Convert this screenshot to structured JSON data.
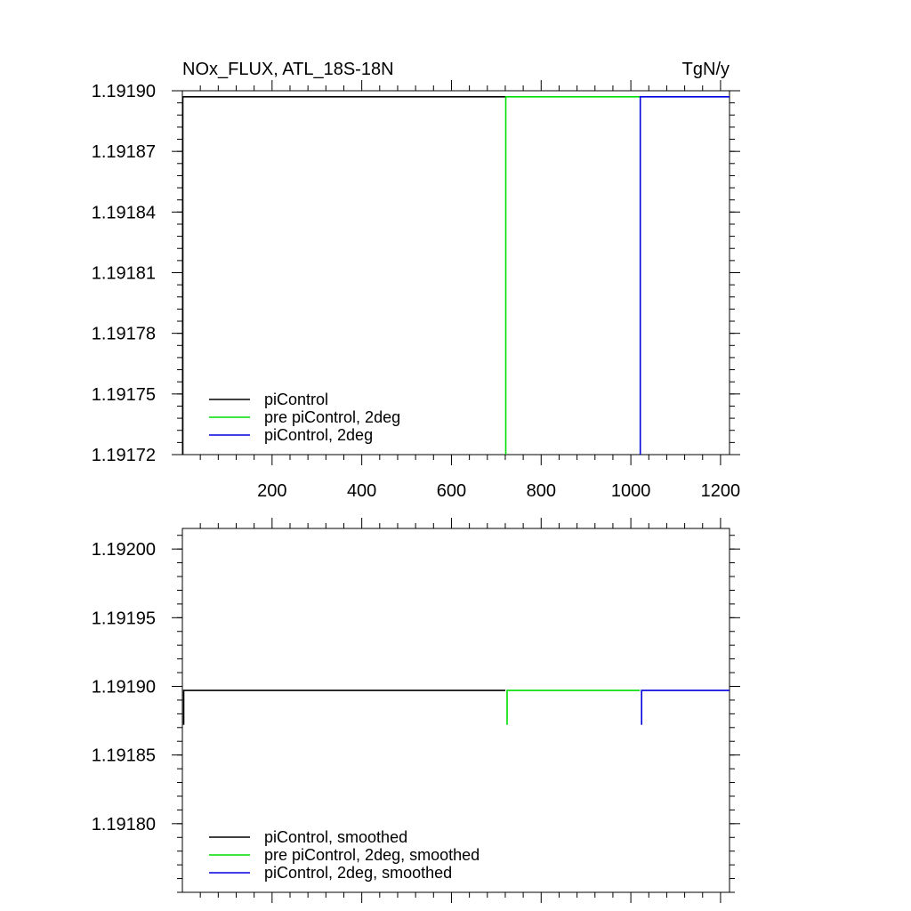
{
  "chart_data": [
    {
      "type": "line",
      "title": "NOx_FLUX, ATL_18S-18N",
      "units": "TgN/y",
      "xlim": [
        0,
        1220
      ],
      "ylim": [
        1.19172,
        1.1919
      ],
      "x_ticks": [
        "200",
        "400",
        "600",
        "800",
        "1000",
        "1200"
      ],
      "x_tick_values": [
        200,
        400,
        600,
        800,
        1000,
        1200
      ],
      "y_ticks": [
        "1.19190",
        "1.19187",
        "1.19184",
        "1.19181",
        "1.19178",
        "1.19175",
        "1.19172"
      ],
      "y_tick_values": [
        1.1919,
        1.19187,
        1.19184,
        1.19181,
        1.19178,
        1.19175,
        1.19172
      ],
      "legend_position": "bottom-left",
      "series": [
        {
          "name": "piControl",
          "color": "#000000",
          "x": [
            1,
            1,
            720
          ],
          "y": [
            1.19172,
            1.191897,
            1.191897
          ]
        },
        {
          "name": "pre piControl, 2deg",
          "color": "#00dd00",
          "x": [
            721,
            721,
            1020
          ],
          "y": [
            1.19172,
            1.191897,
            1.191897
          ]
        },
        {
          "name": "piControl, 2deg",
          "color": "#0000dd",
          "x": [
            1021,
            1021,
            1220
          ],
          "y": [
            1.19172,
            1.191897,
            1.191897
          ]
        }
      ]
    },
    {
      "type": "line",
      "xlim": [
        0,
        1220
      ],
      "ylim": [
        1.19175,
        1.192015
      ],
      "x_tick_values": [
        200,
        400,
        600,
        800,
        1000,
        1200
      ],
      "y_ticks": [
        "1.19200",
        "1.19195",
        "1.19190",
        "1.19185",
        "1.19180"
      ],
      "y_tick_values": [
        1.192,
        1.19195,
        1.1919,
        1.19185,
        1.1918
      ],
      "legend_position": "bottom-left",
      "series": [
        {
          "name": "piControl, smoothed",
          "color": "#000000",
          "x": [
            3,
            3,
            720
          ],
          "y": [
            1.191872,
            1.191897,
            1.191897
          ]
        },
        {
          "name": "pre piControl, 2deg, smoothed",
          "color": "#00dd00",
          "x": [
            724,
            724,
            1020
          ],
          "y": [
            1.191872,
            1.191897,
            1.191897
          ]
        },
        {
          "name": "piControl, 2deg, smoothed",
          "color": "#0000dd",
          "x": [
            1024,
            1024,
            1220
          ],
          "y": [
            1.191872,
            1.191897,
            1.191897
          ]
        }
      ]
    }
  ]
}
